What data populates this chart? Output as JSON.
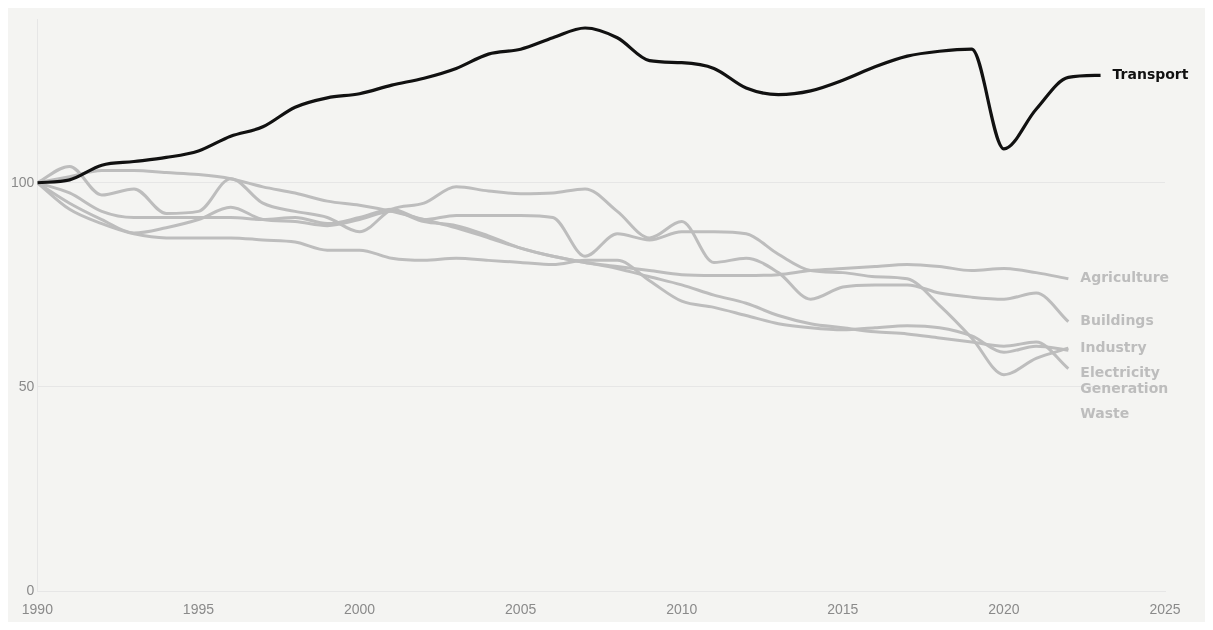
{
  "chart_data": {
    "type": "line",
    "x": [
      1990,
      1991,
      1992,
      1993,
      1994,
      1995,
      1996,
      1997,
      1998,
      1999,
      2000,
      2001,
      2002,
      2003,
      2004,
      2005,
      2006,
      2007,
      2008,
      2009,
      2010,
      2011,
      2012,
      2013,
      2014,
      2015,
      2016,
      2017,
      2018,
      2019,
      2020,
      2021,
      2022
    ],
    "series": [
      {
        "name": "Transport",
        "color": "#111111",
        "x": [
          1990,
          1991,
          1992,
          1993,
          1994,
          1995,
          1996,
          1997,
          1998,
          1999,
          2000,
          2001,
          2002,
          2003,
          2004,
          2005,
          2006,
          2007,
          2008,
          2009,
          2010,
          2011,
          2012,
          2013,
          2014,
          2015,
          2016,
          2017,
          2018,
          2019,
          2020,
          2021,
          2022,
          2023
        ],
        "values": [
          100,
          100.7,
          104.3,
          105.2,
          106.2,
          107.8,
          111.4,
          113.7,
          118.5,
          120.8,
          121.8,
          123.9,
          125.6,
          128,
          131.5,
          132.7,
          135.5,
          137.9,
          135.5,
          129.9,
          129.4,
          128,
          123.2,
          121.6,
          122.5,
          125.1,
          128.4,
          131,
          132.2,
          132.7,
          108.3,
          118,
          125.8,
          126.3
        ]
      },
      {
        "name": "Agriculture",
        "color": "#bdbdbd",
        "values": [
          100,
          101.5,
          103,
          103,
          102.5,
          102,
          101,
          99,
          97.5,
          95.5,
          94.5,
          93,
          91,
          89,
          86.5,
          84,
          82,
          80.5,
          79.5,
          78.5,
          77.5,
          77.3,
          77.3,
          77.5,
          78.5,
          79,
          79.5,
          80,
          79.5,
          78.5,
          79,
          78,
          76.5
        ]
      },
      {
        "name": "Buildings",
        "color": "#bdbdbd",
        "values": [
          100,
          104,
          97,
          98.5,
          92.5,
          93,
          101,
          95,
          93,
          91.5,
          88,
          93.5,
          95,
          99,
          98,
          97.3,
          97.5,
          98.5,
          93,
          86.5,
          90.5,
          80.5,
          81.5,
          78,
          71.5,
          74.5,
          75,
          75,
          73,
          72,
          71.5,
          73,
          66
        ]
      },
      {
        "name": "Electricity Generation",
        "color": "#bdbdbd",
        "values": [
          100,
          93.5,
          90,
          87.5,
          86.5,
          86.5,
          86.5,
          86,
          85.5,
          83.5,
          83.5,
          81.5,
          81,
          81.5,
          81,
          80.5,
          80,
          81,
          81,
          76,
          71,
          69.5,
          67.5,
          65.5,
          64.5,
          64,
          64.5,
          65,
          64.5,
          62.5,
          58.5,
          60,
          59
        ]
      },
      {
        "name": "Waste",
        "color": "#bdbdbd",
        "values": [
          100,
          95,
          91,
          87.7,
          89,
          91,
          94,
          91,
          90.5,
          89.5,
          91,
          93,
          90.5,
          89.5,
          87,
          84,
          82,
          80.5,
          79,
          77,
          75,
          72.5,
          70.5,
          67.5,
          65.5,
          64.5,
          63.5,
          63,
          62,
          61,
          60,
          61,
          54.5
        ]
      },
      {
        "name": "Industry",
        "color": "#bdbdbd",
        "values": [
          100,
          97.5,
          93,
          91.5,
          91.5,
          91.5,
          91.5,
          91,
          91.5,
          90,
          91.5,
          93.5,
          91,
          92,
          92,
          92,
          91.5,
          82,
          87.5,
          86,
          88,
          88,
          87.5,
          82.5,
          78.5,
          78,
          77,
          76.5,
          70,
          62,
          53,
          57,
          59.5
        ]
      }
    ],
    "xlim": [
      1990,
      2025
    ],
    "xticks": [
      1990,
      1995,
      2000,
      2005,
      2010,
      2015,
      2020,
      2025
    ],
    "ylim": [
      0,
      140
    ],
    "yticks": [
      0,
      50,
      100
    ],
    "grid": "y",
    "legend": false,
    "marker": "none",
    "line_style": "solid"
  }
}
